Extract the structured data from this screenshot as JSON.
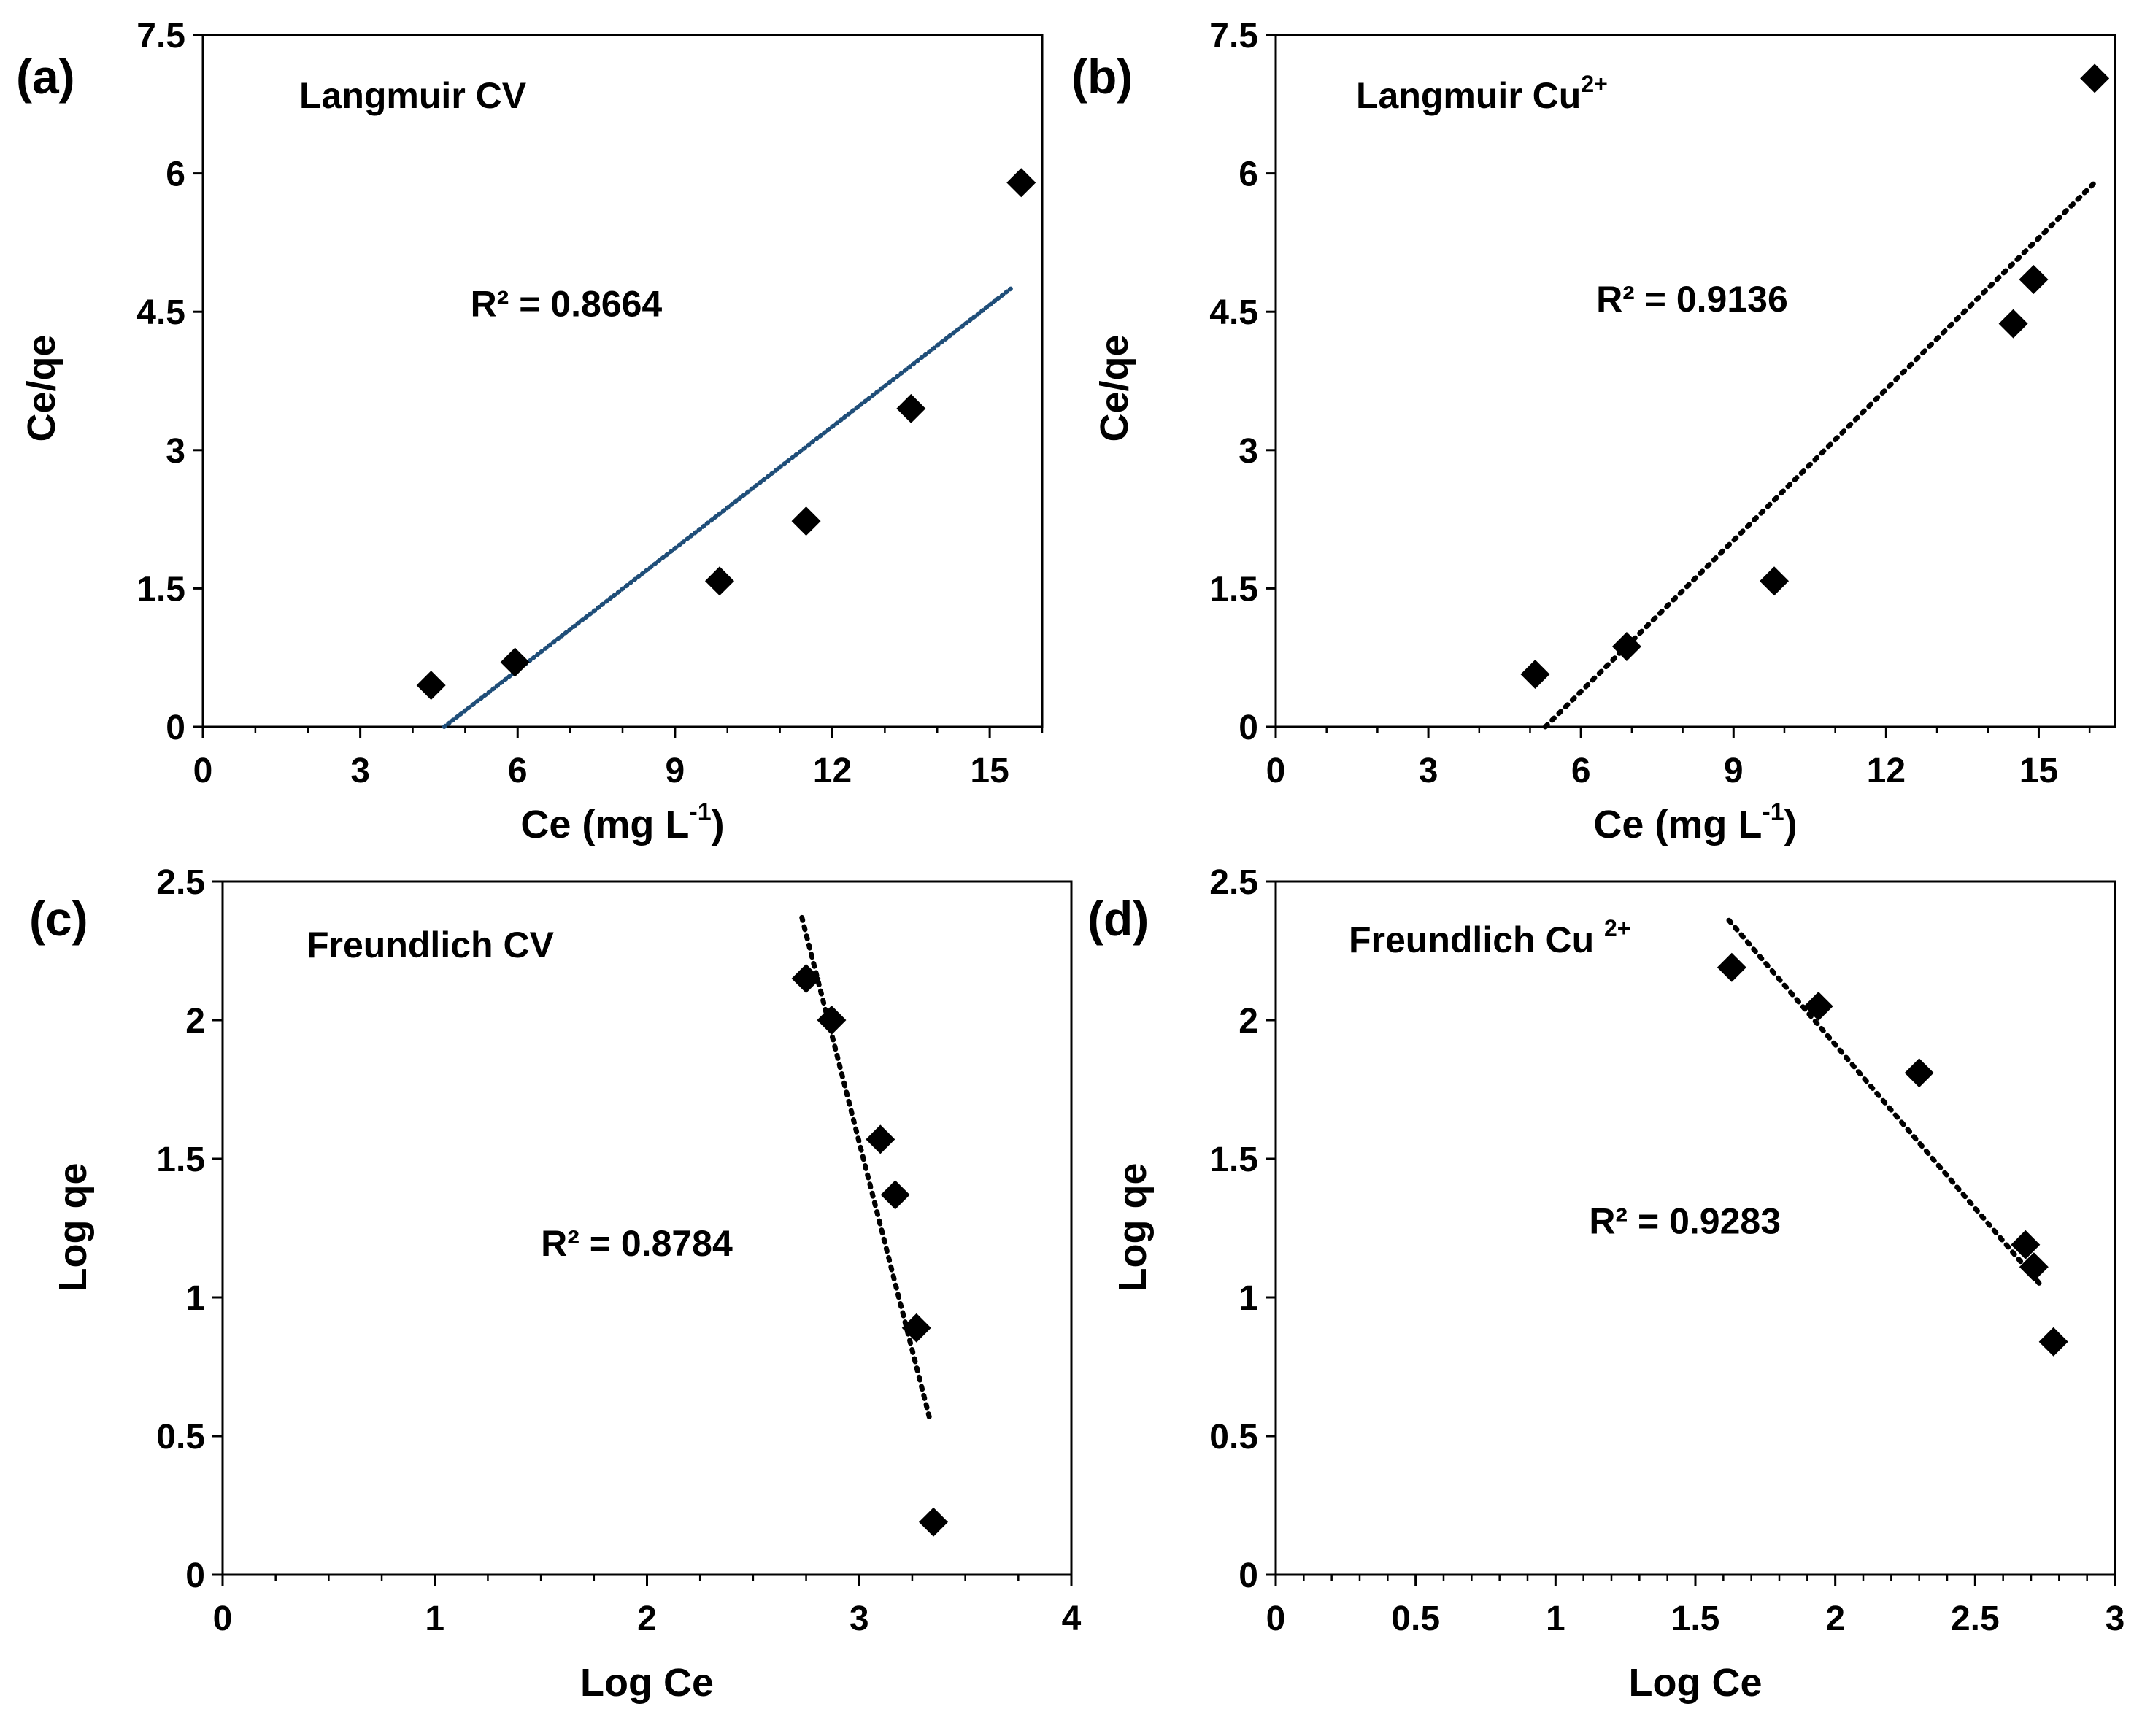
{
  "chart_data": [
    {
      "panel_label": "(a)",
      "type": "scatter",
      "title": "Langmuir CV",
      "title_sup": "",
      "xlabel": "Ce (mg L",
      "xlabel_sup": "-1",
      "xlabel_end": ")",
      "ylabel": "Ce/qe",
      "xlim": [
        0,
        16
      ],
      "ylim": [
        0,
        7.5
      ],
      "xticks": [
        0,
        3,
        6,
        9,
        12,
        15
      ],
      "yticks": [
        0,
        1.5,
        3,
        4.5,
        6,
        7.5
      ],
      "xtick_labels": [
        "0",
        "3",
        "6",
        "9",
        "12",
        "15"
      ],
      "ytick_labels": [
        "0",
        "1.5",
        "3",
        "4.5",
        "6",
        "7.5"
      ],
      "x_minor_step": 1,
      "points": [
        {
          "x": 4.35,
          "y": 0.45
        },
        {
          "x": 5.95,
          "y": 0.7
        },
        {
          "x": 9.85,
          "y": 1.58
        },
        {
          "x": 11.5,
          "y": 2.23
        },
        {
          "x": 13.5,
          "y": 3.45
        },
        {
          "x": 15.6,
          "y": 5.9
        }
      ],
      "trendline": {
        "x1": 4.6,
        "y1": 0.0,
        "x2": 15.4,
        "y2": 4.75,
        "style": "dotted-blue"
      },
      "annotation": "R² = 0.8664",
      "annotation_at": {
        "x": 5.1,
        "y": 4.45
      }
    },
    {
      "panel_label": "(b)",
      "type": "scatter",
      "title": "Langmuir Cu",
      "title_sup": "2+",
      "xlabel": "Ce (mg L",
      "xlabel_sup": "-1",
      "xlabel_end": ")",
      "ylabel": "Ce/qe",
      "xlim": [
        0,
        16.5
      ],
      "ylim": [
        0,
        7.5
      ],
      "xticks": [
        0,
        3,
        6,
        9,
        12,
        15
      ],
      "yticks": [
        0,
        1.5,
        3,
        4.5,
        6,
        7.5
      ],
      "xtick_labels": [
        "0",
        "3",
        "6",
        "9",
        "12",
        "15"
      ],
      "ytick_labels": [
        "0",
        "1.5",
        "3",
        "4.5",
        "6",
        "7.5"
      ],
      "x_minor_step": 1,
      "points": [
        {
          "x": 5.1,
          "y": 0.57
        },
        {
          "x": 6.9,
          "y": 0.87
        },
        {
          "x": 9.8,
          "y": 1.58
        },
        {
          "x": 14.5,
          "y": 4.37
        },
        {
          "x": 14.9,
          "y": 4.85
        },
        {
          "x": 16.1,
          "y": 7.03
        }
      ],
      "trendline": {
        "x1": 5.3,
        "y1": 0.0,
        "x2": 16.1,
        "y2": 5.9,
        "style": "dotted-black"
      },
      "annotation": "R² = 0.9136",
      "annotation_at": {
        "x": 6.3,
        "y": 4.5
      }
    },
    {
      "panel_label": "(c)",
      "type": "scatter",
      "title": "Freundlich CV",
      "title_sup": "",
      "xlabel": "Log Ce",
      "xlabel_sup": "",
      "xlabel_end": "",
      "ylabel": "Log qe",
      "xlim": [
        0,
        4
      ],
      "ylim": [
        0,
        2.5
      ],
      "xticks": [
        0,
        1,
        2,
        3,
        4
      ],
      "yticks": [
        0,
        0.5,
        1,
        1.5,
        2,
        2.5
      ],
      "xtick_labels": [
        "0",
        "1",
        "2",
        "3",
        "4"
      ],
      "ytick_labels": [
        "0",
        "0.5",
        "1",
        "1.5",
        "2",
        "2.5"
      ],
      "x_minor_step": 0.25,
      "points": [
        {
          "x": 2.75,
          "y": 2.15
        },
        {
          "x": 2.87,
          "y": 2.0
        },
        {
          "x": 3.1,
          "y": 1.57
        },
        {
          "x": 3.17,
          "y": 1.37
        },
        {
          "x": 3.27,
          "y": 0.89
        },
        {
          "x": 3.35,
          "y": 0.19
        }
      ],
      "trendline": {
        "x1": 2.73,
        "y1": 2.37,
        "x2": 3.33,
        "y2": 0.57,
        "style": "dotted-black"
      },
      "annotation": "R² = 0.8784",
      "annotation_at": {
        "x": 1.5,
        "y": 1.15
      }
    },
    {
      "panel_label": "(d)",
      "type": "scatter",
      "title": "Freundlich Cu ",
      "title_sup": "2+",
      "xlabel": "Log Ce",
      "xlabel_sup": "",
      "xlabel_end": "",
      "ylabel": "Log qe",
      "xlim": [
        0,
        3
      ],
      "ylim": [
        0,
        2.5
      ],
      "xticks": [
        0,
        0.5,
        1,
        1.5,
        2,
        2.5,
        3
      ],
      "yticks": [
        0,
        0.5,
        1,
        1.5,
        2,
        2.5
      ],
      "xtick_labels": [
        "0",
        "0.5",
        "1",
        "1.5",
        "2",
        "2.5",
        "3"
      ],
      "ytick_labels": [
        "0",
        "0.5",
        "1",
        "1.5",
        "2",
        "2.5"
      ],
      "x_minor_step": 0.1,
      "points": [
        {
          "x": 1.63,
          "y": 2.19
        },
        {
          "x": 1.94,
          "y": 2.05
        },
        {
          "x": 2.3,
          "y": 1.81
        },
        {
          "x": 2.68,
          "y": 1.19
        },
        {
          "x": 2.71,
          "y": 1.11
        },
        {
          "x": 2.78,
          "y": 0.84
        }
      ],
      "trendline": {
        "x1": 1.62,
        "y1": 2.36,
        "x2": 2.73,
        "y2": 1.05,
        "style": "dotted-black"
      },
      "annotation": "R² = 0.9283",
      "annotation_at": {
        "x": 1.12,
        "y": 1.23
      }
    }
  ]
}
